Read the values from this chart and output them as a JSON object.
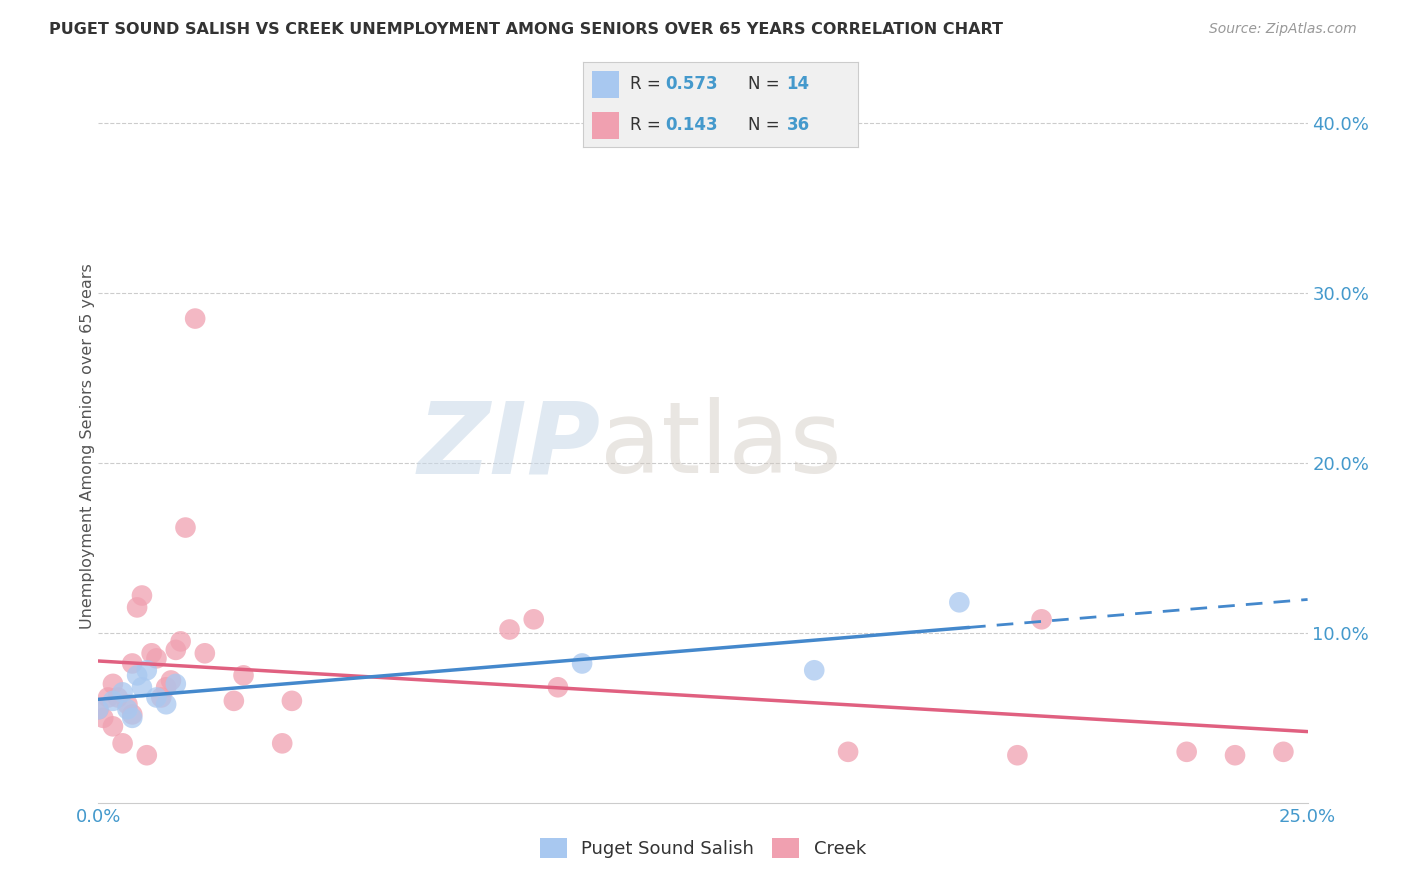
{
  "title": "PUGET SOUND SALISH VS CREEK UNEMPLOYMENT AMONG SENIORS OVER 65 YEARS CORRELATION CHART",
  "source": "Source: ZipAtlas.com",
  "ylabel_label": "Unemployment Among Seniors over 65 years",
  "xlim": [
    0.0,
    0.25
  ],
  "ylim": [
    0.0,
    0.42
  ],
  "x_ticks": [
    0.0,
    0.05,
    0.1,
    0.15,
    0.2,
    0.25
  ],
  "x_tick_labels": [
    "0.0%",
    "",
    "",
    "",
    "",
    "25.0%"
  ],
  "y_ticks_right": [
    0.0,
    0.1,
    0.2,
    0.3,
    0.4
  ],
  "y_tick_labels_right": [
    "",
    "10.0%",
    "20.0%",
    "30.0%",
    "40.0%"
  ],
  "R_salish": 0.573,
  "N_salish": 14,
  "R_creek": 0.143,
  "N_creek": 36,
  "salish_color": "#a8c8f0",
  "creek_color": "#f0a0b0",
  "salish_line_color": "#4488cc",
  "creek_line_color": "#e06080",
  "watermark_zip": "ZIP",
  "watermark_atlas": "atlas",
  "salish_points_x": [
    0.0,
    0.003,
    0.005,
    0.006,
    0.007,
    0.008,
    0.009,
    0.01,
    0.012,
    0.014,
    0.016,
    0.1,
    0.148,
    0.178
  ],
  "salish_points_y": [
    0.055,
    0.06,
    0.065,
    0.055,
    0.05,
    0.075,
    0.068,
    0.078,
    0.062,
    0.058,
    0.07,
    0.082,
    0.078,
    0.118
  ],
  "creek_points_x": [
    0.0,
    0.001,
    0.002,
    0.003,
    0.003,
    0.004,
    0.005,
    0.006,
    0.007,
    0.007,
    0.008,
    0.009,
    0.01,
    0.011,
    0.012,
    0.013,
    0.014,
    0.015,
    0.016,
    0.017,
    0.018,
    0.02,
    0.022,
    0.028,
    0.03,
    0.038,
    0.04,
    0.085,
    0.09,
    0.095,
    0.155,
    0.19,
    0.195,
    0.225,
    0.235,
    0.245
  ],
  "creek_points_y": [
    0.055,
    0.05,
    0.062,
    0.045,
    0.07,
    0.062,
    0.035,
    0.058,
    0.052,
    0.082,
    0.115,
    0.122,
    0.028,
    0.088,
    0.085,
    0.062,
    0.068,
    0.072,
    0.09,
    0.095,
    0.162,
    0.285,
    0.088,
    0.06,
    0.075,
    0.035,
    0.06,
    0.102,
    0.108,
    0.068,
    0.03,
    0.028,
    0.108,
    0.03,
    0.028,
    0.03
  ],
  "background_color": "#ffffff",
  "grid_color": "#cccccc",
  "legend_bg": "#f0f0f0",
  "legend_border": "#cccccc"
}
